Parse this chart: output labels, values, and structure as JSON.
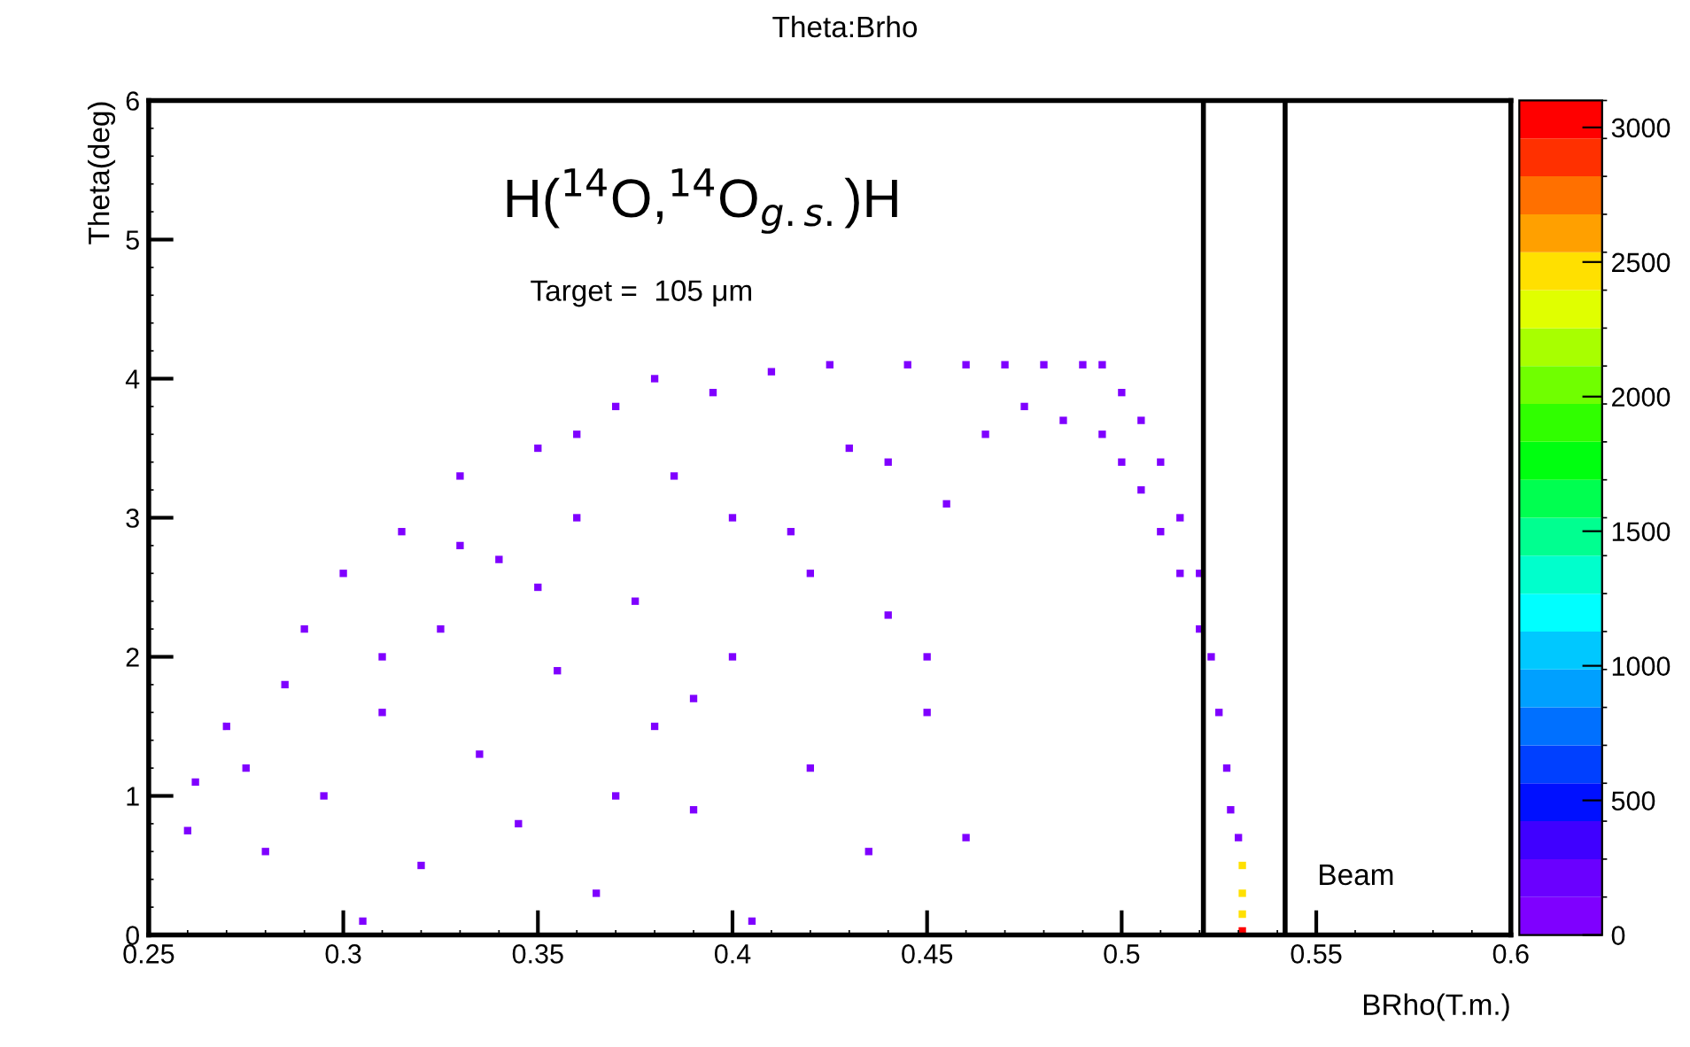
{
  "chart_data": {
    "type": "scatter",
    "title": "Theta:Brho",
    "xlabel": "BRho(T.m.)",
    "ylabel": "Theta(deg)",
    "annotations": [
      "H($^{14}$O,$^{14}$O$_{g.s.}$)H",
      "Target =  105 μm",
      "Beam"
    ],
    "xlim": [
      0.25,
      0.6
    ],
    "xticks": [
      0.25,
      0.3,
      0.35,
      0.4,
      0.45,
      0.5,
      0.55,
      0.6
    ],
    "ylim": [
      0,
      6
    ],
    "yticks": [
      0,
      1,
      2,
      3,
      4,
      5,
      6
    ],
    "clim": [
      0,
      3100
    ],
    "cticks": [
      0,
      500,
      1000,
      1500,
      2000,
      2500,
      3000
    ],
    "marker": "square",
    "grid": false,
    "legend": false,
    "ref_lines": [
      {
        "axis": "x",
        "value": 0.521,
        "color": "#000000"
      },
      {
        "axis": "x",
        "value": 0.542,
        "color": "#000000"
      }
    ],
    "x": [
      0.26,
      0.262,
      0.27,
      0.275,
      0.28,
      0.285,
      0.29,
      0.295,
      0.3,
      0.305,
      0.31,
      0.315,
      0.32,
      0.325,
      0.33,
      0.335,
      0.34,
      0.345,
      0.35,
      0.355,
      0.36,
      0.365,
      0.37,
      0.375,
      0.38,
      0.385,
      0.39,
      0.395,
      0.4,
      0.405,
      0.41,
      0.415,
      0.42,
      0.425,
      0.43,
      0.435,
      0.44,
      0.445,
      0.45,
      0.455,
      0.46,
      0.46,
      0.465,
      0.47,
      0.475,
      0.48,
      0.485,
      0.49,
      0.495,
      0.495,
      0.5,
      0.5,
      0.505,
      0.505,
      0.51,
      0.51,
      0.515,
      0.515,
      0.52,
      0.52,
      0.523,
      0.525,
      0.527,
      0.528,
      0.53,
      0.35,
      0.4,
      0.38,
      0.31,
      0.33,
      0.37,
      0.42,
      0.44,
      0.45,
      0.39,
      0.36,
      0.531,
      0.531,
      0.531,
      0.531
    ],
    "values": [
      0.75,
      1.1,
      1.5,
      1.2,
      0.6,
      1.8,
      2.2,
      1.0,
      2.6,
      0.1,
      1.6,
      2.9,
      0.5,
      2.2,
      3.3,
      1.3,
      2.7,
      0.8,
      3.5,
      1.9,
      3.0,
      0.3,
      3.8,
      2.4,
      1.5,
      3.3,
      0.9,
      3.9,
      2.0,
      0.1,
      4.05,
      2.9,
      1.2,
      4.1,
      3.5,
      0.6,
      2.3,
      4.1,
      1.6,
      3.1,
      0.7,
      4.1,
      3.6,
      4.1,
      3.8,
      4.1,
      3.7,
      4.1,
      4.1,
      3.6,
      3.9,
      3.4,
      3.7,
      3.2,
      3.4,
      2.9,
      3.0,
      2.6,
      2.6,
      2.2,
      2.0,
      1.6,
      1.2,
      0.9,
      0.7,
      2.5,
      3.0,
      4.0,
      2.0,
      2.8,
      1.0,
      2.6,
      3.4,
      2.0,
      1.7,
      3.6,
      0.5,
      0.3,
      0.15,
      0.03
    ],
    "cvalues": [
      50,
      50,
      50,
      50,
      50,
      50,
      50,
      50,
      50,
      50,
      50,
      50,
      50,
      50,
      50,
      50,
      50,
      50,
      50,
      50,
      50,
      50,
      50,
      50,
      50,
      50,
      50,
      50,
      50,
      50,
      50,
      50,
      50,
      50,
      50,
      50,
      50,
      50,
      50,
      50,
      50,
      50,
      50,
      50,
      50,
      50,
      50,
      50,
      50,
      50,
      50,
      50,
      50,
      50,
      50,
      50,
      50,
      50,
      50,
      50,
      50,
      50,
      50,
      50,
      50,
      50,
      50,
      50,
      50,
      50,
      50,
      50,
      50,
      50,
      50,
      50,
      2400,
      2400,
      2400,
      3000
    ]
  }
}
